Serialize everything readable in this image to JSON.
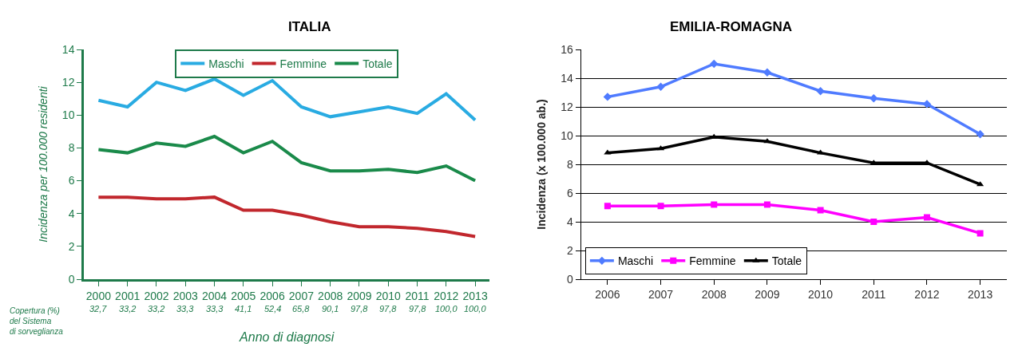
{
  "chart_data": [
    {
      "type": "line",
      "title": "ITALIA",
      "xlabel": "Anno di diagnosi",
      "ylabel": "Incidenza per 100.000 residenti",
      "categories": [
        "2000",
        "2001",
        "2002",
        "2003",
        "2004",
        "2005",
        "2006",
        "2007",
        "2008",
        "2009",
        "2010",
        "2011",
        "2012",
        "2013"
      ],
      "series": [
        {
          "name": "Maschi",
          "color": "#29abe2",
          "values": [
            10.9,
            10.5,
            12.0,
            11.5,
            12.2,
            11.2,
            12.1,
            10.5,
            9.9,
            10.2,
            10.5,
            10.1,
            11.3,
            9.7
          ]
        },
        {
          "name": "Femmine",
          "color": "#c1272d",
          "values": [
            5.0,
            5.0,
            4.9,
            4.9,
            5.0,
            4.2,
            4.2,
            3.9,
            3.5,
            3.2,
            3.2,
            3.1,
            2.9,
            2.6
          ]
        },
        {
          "name": "Totale",
          "color": "#1a8a4a",
          "values": [
            7.9,
            7.7,
            8.3,
            8.1,
            8.7,
            7.7,
            8.4,
            7.1,
            6.6,
            6.6,
            6.7,
            6.5,
            6.9,
            6.0
          ]
        }
      ],
      "ylim": [
        0,
        14
      ],
      "yticks": [
        0,
        2,
        4,
        6,
        8,
        10,
        12,
        14
      ],
      "grid": false,
      "legend": "top",
      "annotations": [
        "Copertura (%)\ndel Sistema\ndi sorveglianza",
        "32,7",
        "33,2",
        "33,2",
        "33,3",
        "33,3",
        "41,1",
        "52,4",
        "65,8",
        "90,1",
        "97,8",
        "97,8",
        "97,8",
        "100,0",
        "100,0"
      ]
    },
    {
      "type": "line",
      "title": "EMILIA-ROMAGNA",
      "ylabel": "Incidenza (x 100.000 ab.)",
      "categories": [
        "2006",
        "2007",
        "2008",
        "2009",
        "2010",
        "2011",
        "2012",
        "2013"
      ],
      "series": [
        {
          "name": "Maschi",
          "color": "#4f7bff",
          "marker": "diamond",
          "values": [
            12.7,
            13.4,
            15.0,
            14.4,
            13.1,
            12.6,
            12.2,
            10.1
          ]
        },
        {
          "name": "Femmine",
          "color": "#ff00ff",
          "marker": "square",
          "values": [
            5.1,
            5.1,
            5.2,
            5.2,
            4.8,
            4.0,
            4.3,
            3.2
          ]
        },
        {
          "name": "Totale",
          "color": "#000000",
          "marker": "triangle",
          "values": [
            8.8,
            9.1,
            9.9,
            9.6,
            8.8,
            8.1,
            8.1,
            6.6
          ]
        }
      ],
      "ylim": [
        0,
        16
      ],
      "yticks": [
        0,
        2,
        4,
        6,
        8,
        10,
        12,
        14,
        16
      ],
      "grid": "y",
      "legend": "bottom left"
    }
  ]
}
